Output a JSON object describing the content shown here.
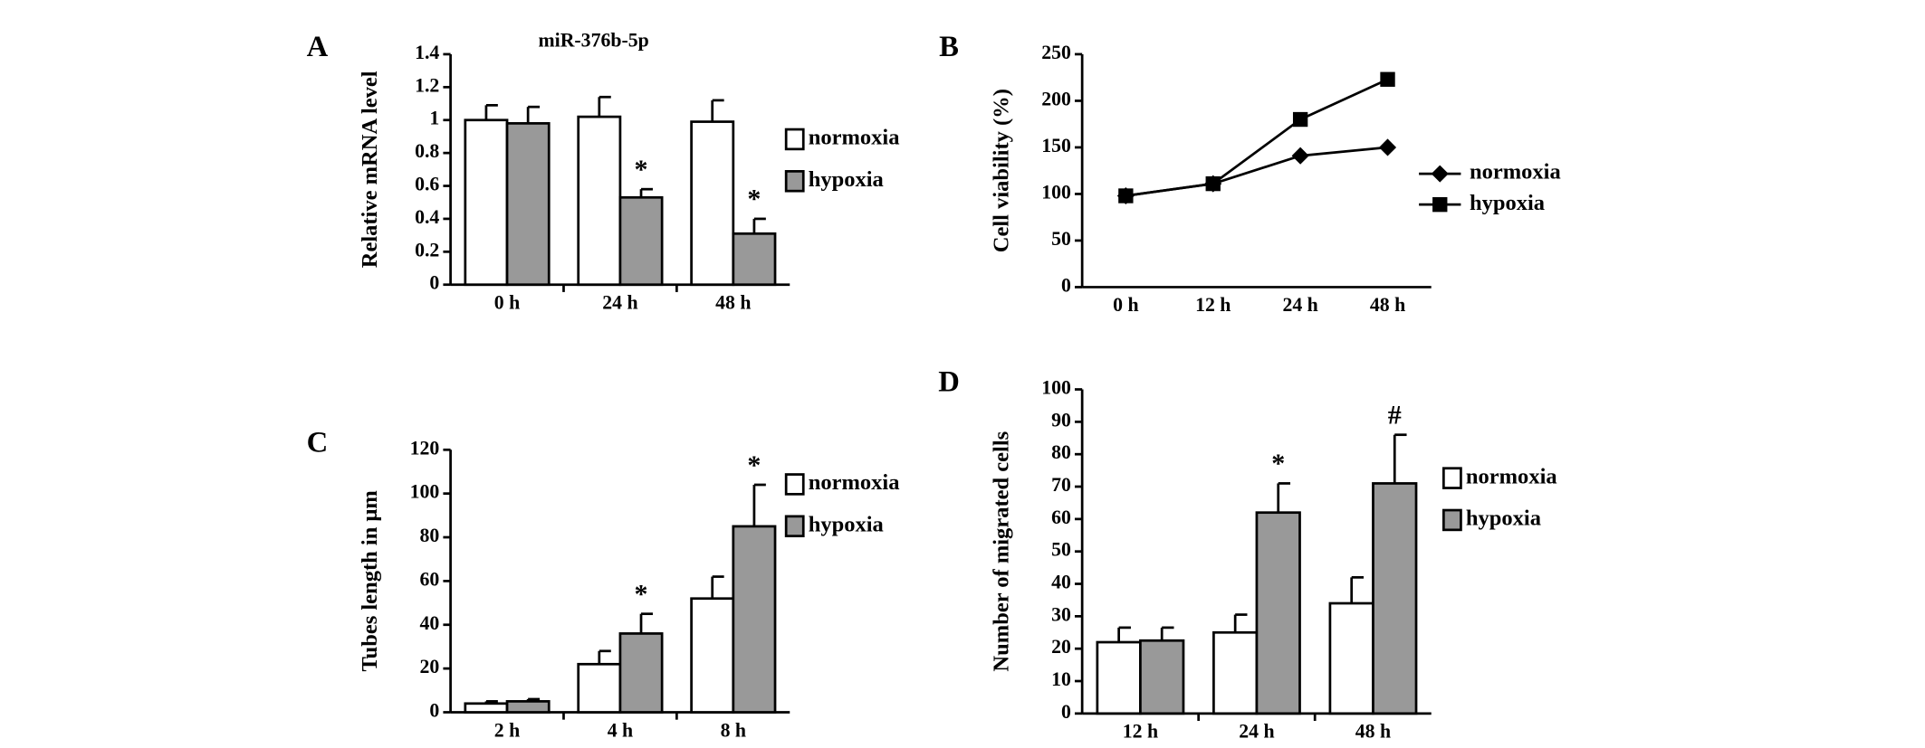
{
  "chart_data": [
    {
      "type": "bar",
      "panel": "A",
      "title": "miR-376b-5p",
      "y_label": "Relative mRNA level",
      "categories": [
        "0 h",
        "24 h",
        "48 h"
      ],
      "series": [
        {
          "name": "normoxia",
          "color": "#ffffff",
          "values": [
            1.0,
            1.02,
            0.99
          ],
          "errors": [
            0.09,
            0.12,
            0.13
          ],
          "markers": [
            null,
            null,
            null
          ]
        },
        {
          "name": "hypoxia",
          "color": "#999999",
          "values": [
            0.98,
            0.53,
            0.31
          ],
          "errors": [
            0.1,
            0.05,
            0.09
          ],
          "markers": [
            null,
            "*",
            "*"
          ]
        }
      ],
      "ylim": [
        0,
        1.4
      ],
      "yticks": [
        0,
        0.2,
        0.4,
        0.6,
        0.8,
        1,
        1.2,
        1.4
      ],
      "legend": "right"
    },
    {
      "type": "line",
      "panel": "B",
      "y_label": "Cell viability (%)",
      "categories": [
        "0 h",
        "12 h",
        "24 h",
        "48 h"
      ],
      "series": [
        {
          "name": "normoxia",
          "color": "#000000",
          "marker": "diamond",
          "values": [
            98,
            111,
            141,
            150
          ]
        },
        {
          "name": "hypoxia",
          "color": "#000000",
          "marker": "square",
          "values": [
            98,
            111,
            180,
            223
          ]
        }
      ],
      "ylim": [
        0,
        250
      ],
      "yticks": [
        0,
        50,
        100,
        150,
        200,
        250
      ],
      "legend": "right"
    },
    {
      "type": "bar",
      "panel": "C",
      "y_label": "Tubes length in μm",
      "categories": [
        "2 h",
        "4 h",
        "8 h"
      ],
      "series": [
        {
          "name": "normoxia",
          "color": "#ffffff",
          "values": [
            4,
            22,
            52
          ],
          "errors": [
            1,
            6,
            10
          ],
          "markers": [
            null,
            null,
            null
          ]
        },
        {
          "name": "hypoxia",
          "color": "#999999",
          "values": [
            5,
            36,
            85
          ],
          "errors": [
            1,
            9,
            19
          ],
          "markers": [
            null,
            "*",
            "*"
          ]
        }
      ],
      "ylim": [
        0,
        120
      ],
      "yticks": [
        0,
        20,
        40,
        60,
        80,
        100,
        120
      ],
      "legend": "right"
    },
    {
      "type": "bar",
      "panel": "D",
      "y_label": "Number of migrated cells",
      "categories": [
        "12 h",
        "24 h",
        "48 h"
      ],
      "series": [
        {
          "name": "normoxia",
          "color": "#ffffff",
          "values": [
            22,
            25,
            34
          ],
          "errors": [
            4.5,
            5.5,
            8
          ],
          "markers": [
            null,
            null,
            null
          ]
        },
        {
          "name": "hypoxia",
          "color": "#999999",
          "values": [
            22.5,
            62,
            71
          ],
          "errors": [
            4,
            9,
            15
          ],
          "markers": [
            null,
            "*",
            "#"
          ]
        }
      ],
      "ylim": [
        0,
        100
      ],
      "yticks": [
        0,
        10,
        20,
        30,
        40,
        50,
        60,
        70,
        80,
        90,
        100
      ],
      "legend": "right"
    }
  ]
}
